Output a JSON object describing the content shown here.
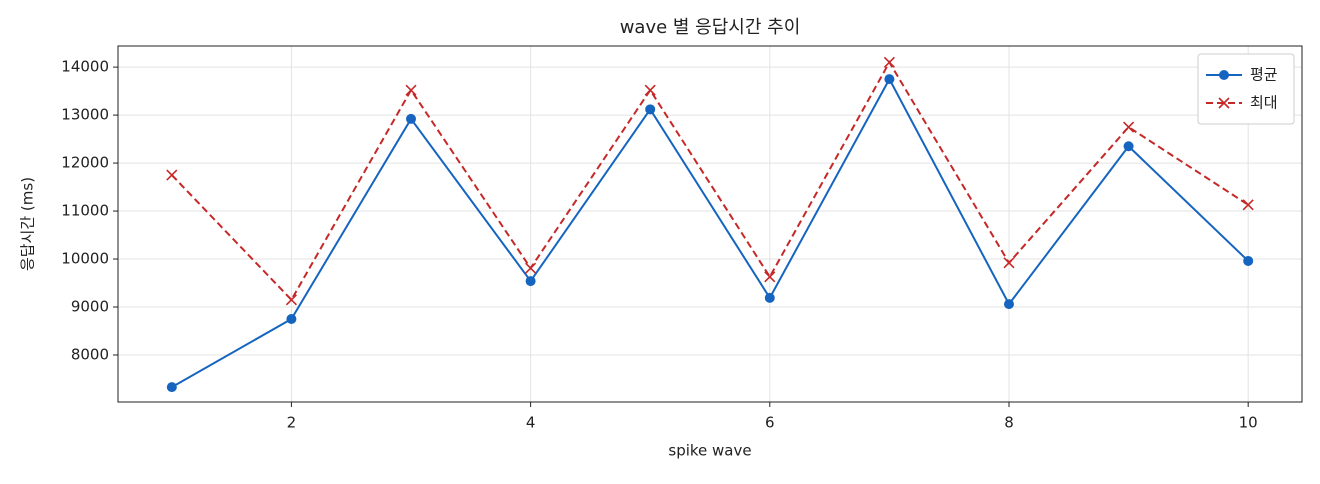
{
  "chart_data": {
    "type": "line",
    "title": "wave 별 응답시간 추이",
    "xlabel": "spike wave",
    "ylabel": "응답시간 (ms)",
    "x": [
      1,
      2,
      3,
      4,
      5,
      6,
      7,
      8,
      9,
      10
    ],
    "series": [
      {
        "name": "평균",
        "color": "#1565c0",
        "marker": "o",
        "linestyle": "solid",
        "values": [
          7330,
          8750,
          12920,
          9540,
          13120,
          9190,
          13750,
          9060,
          12350,
          9960
        ]
      },
      {
        "name": "최대",
        "color": "#c62828",
        "marker": "x",
        "linestyle": "dashed",
        "values": [
          11750,
          9150,
          13520,
          9810,
          13520,
          9630,
          14100,
          9920,
          12750,
          11130
        ]
      }
    ],
    "xlim": [
      0.55,
      10.45
    ],
    "xticks": [
      2,
      4,
      6,
      8,
      10
    ],
    "ylim": [
      7020,
      14440
    ],
    "yticks": [
      8000,
      9000,
      10000,
      11000,
      12000,
      13000,
      14000
    ],
    "grid": true,
    "legend": "upper right"
  }
}
